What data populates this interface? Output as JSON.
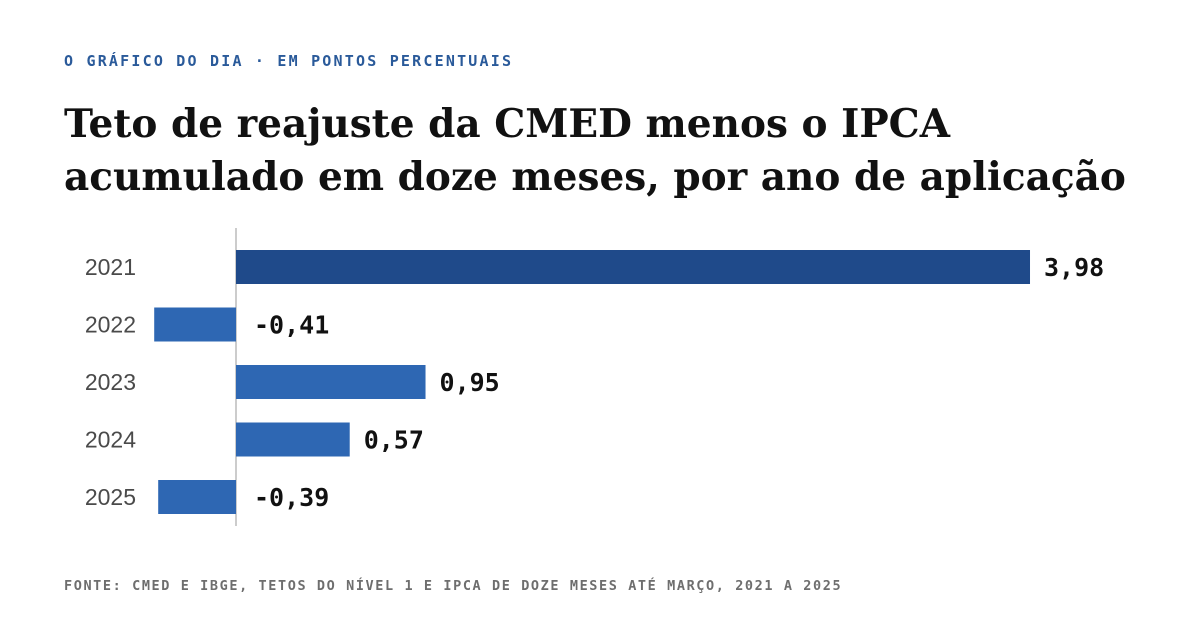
{
  "header": {
    "kicker": "O GRÁFICO DO DIA · EM PONTOS PERCENTUAIS",
    "title": "Teto de reajuste da CMED menos o IPCA acumulado em doze meses, por ano de aplicação"
  },
  "footer": {
    "source": "FONTE: CMED E IBGE, TETOS DO NÍVEL 1 E IPCA DE DOZE MESES ATÉ MARÇO, 2021 A 2025"
  },
  "colors": {
    "highlight_bar": "#1f4a8a",
    "bar": "#2e67b3",
    "axis": "#bbbbbb"
  },
  "chart_data": {
    "type": "bar",
    "orientation": "horizontal",
    "categories": [
      "2021",
      "2022",
      "2023",
      "2024",
      "2025"
    ],
    "values": [
      3.98,
      -0.41,
      0.95,
      0.57,
      -0.39
    ],
    "value_labels": [
      "3,98",
      "-0,41",
      "0,95",
      "0,57",
      "-0,39"
    ],
    "highlighted_category": "2021",
    "grid": false,
    "legend": "none"
  }
}
